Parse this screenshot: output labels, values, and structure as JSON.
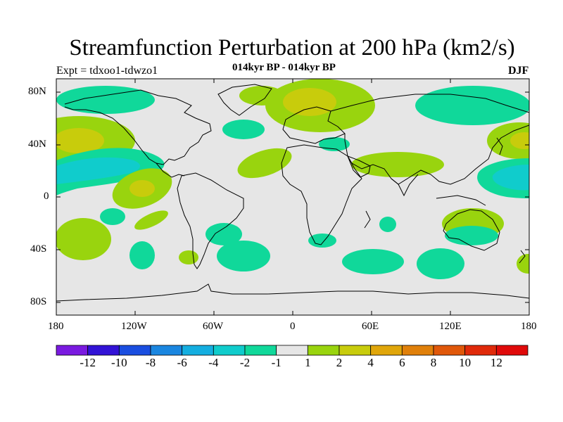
{
  "title": "Streamfunction Perturbation at 200 hPa (km2/s)",
  "left_label": "Expt = tdxoo1-tdwzo1",
  "center_label": "014kyr BP - 014kyr BP",
  "right_label": "DJF",
  "lat_ticks": [
    "80N",
    "40N",
    "0",
    "40S",
    "80S"
  ],
  "lon_ticks": [
    "180",
    "120W",
    "60W",
    "0",
    "60E",
    "120E",
    "180"
  ],
  "colorbar": {
    "labels": [
      "-12",
      "-10",
      "-8",
      "-6",
      "-4",
      "-2",
      "-1",
      "1",
      "2",
      "4",
      "6",
      "8",
      "10",
      "12"
    ],
    "colors": [
      "#7a1ae0",
      "#3213d6",
      "#1a4ee0",
      "#1a86e0",
      "#14aee0",
      "#10cccc",
      "#10d89a",
      "#e6e6e6",
      "#99d40e",
      "#c8cc0c",
      "#e0a60a",
      "#e0800a",
      "#e0580a",
      "#e02a0a",
      "#e00a0a"
    ]
  },
  "colors": {
    "background_field": "#e6e6e6",
    "coast": "#000000"
  }
}
